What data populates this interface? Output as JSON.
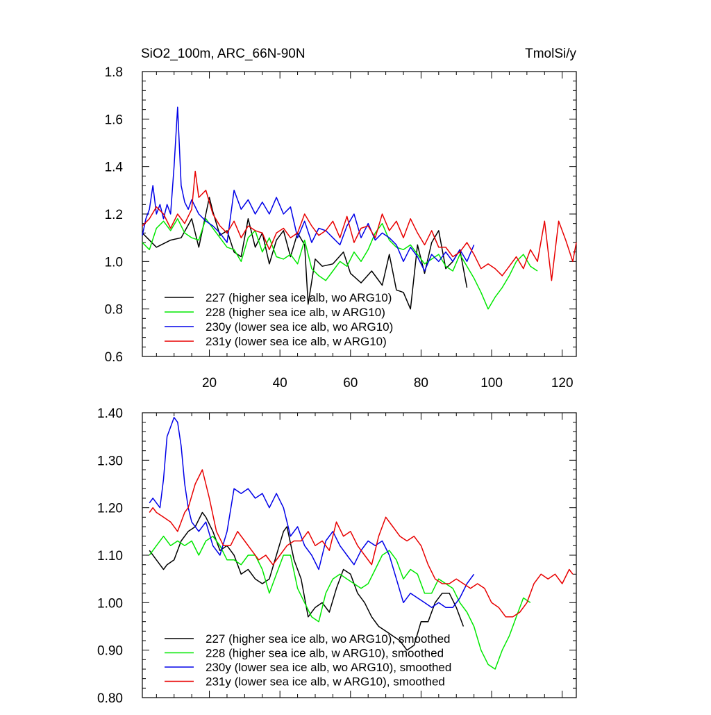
{
  "chart_data": [
    {
      "type": "line",
      "title": "SiO2_100m, ARC_66N-90N",
      "units": "TmolSi/y",
      "xlim": [
        1,
        124
      ],
      "ylim": [
        0.6,
        1.8
      ],
      "grid": false,
      "legend_position": "bottom-left",
      "x_ticks": [
        20,
        40,
        60,
        80,
        100,
        120
      ],
      "x_tick_labels": [
        "20",
        "40",
        "60",
        "80",
        "100",
        "120"
      ],
      "y_ticks": [
        0.6,
        0.8,
        1.0,
        1.2,
        1.4,
        1.6,
        1.8
      ],
      "y_tick_labels": [
        "0.6",
        "0.8",
        "1.0",
        "1.2",
        "1.4",
        "1.6",
        "1.8"
      ],
      "series": [
        {
          "name": "227 (higher sea ice alb, wo ARG10)",
          "color": "#000000",
          "x": [
            1,
            5,
            9,
            12,
            15,
            17,
            19,
            20,
            21,
            23,
            25,
            27,
            29,
            31,
            33,
            35,
            37,
            39,
            41,
            43,
            45,
            47,
            48,
            50,
            52,
            55,
            58,
            60,
            63,
            66,
            69,
            71,
            73,
            75,
            77,
            79,
            81,
            83,
            85,
            87,
            89,
            91,
            93
          ],
          "y": [
            1.12,
            1.06,
            1.09,
            1.1,
            1.18,
            1.06,
            1.2,
            1.27,
            1.21,
            1.11,
            1.13,
            1.04,
            1.02,
            1.18,
            1.06,
            1.12,
            0.99,
            1.09,
            1.13,
            1.02,
            1.12,
            1.07,
            0.82,
            1.01,
            0.98,
            0.99,
            1.04,
            0.95,
            0.91,
            0.96,
            0.9,
            1.03,
            0.88,
            0.87,
            0.8,
            1.07,
            0.95,
            1.08,
            1.13,
            0.97,
            1.0,
            1.05,
            0.89
          ]
        },
        {
          "name": "228 (higher sea ice alb, w ARG10)",
          "color": "#00e800",
          "x": [
            1,
            3,
            5,
            7,
            9,
            11,
            13,
            15,
            17,
            19,
            21,
            23,
            25,
            27,
            29,
            31,
            33,
            35,
            37,
            39,
            41,
            43,
            45,
            47,
            49,
            51,
            53,
            55,
            57,
            59,
            61,
            63,
            65,
            67,
            69,
            71,
            73,
            75,
            77,
            79,
            81,
            83,
            85,
            87,
            89,
            91,
            93,
            95,
            97,
            99,
            101,
            103,
            105,
            107,
            109,
            111,
            113
          ],
          "y": [
            1.08,
            1.05,
            1.14,
            1.17,
            1.13,
            1.18,
            1.12,
            1.1,
            1.09,
            1.18,
            1.14,
            1.1,
            1.06,
            1.05,
            1.0,
            1.1,
            1.13,
            1.04,
            1.1,
            1.02,
            1.01,
            1.03,
            0.99,
            1.09,
            0.97,
            0.94,
            0.92,
            0.96,
            1.0,
            0.98,
            1.04,
            1.0,
            1.05,
            1.12,
            1.16,
            1.09,
            1.06,
            1.05,
            1.07,
            1.03,
            0.99,
            1.01,
            1.03,
            0.98,
            0.96,
            1.03,
            0.98,
            0.93,
            0.87,
            0.8,
            0.85,
            0.89,
            0.94,
            1.0,
            1.03,
            0.98,
            0.96
          ]
        },
        {
          "name": "230y (lower sea ice alb, wo ARG10)",
          "color": "#0000e8",
          "x": [
            1,
            2,
            3,
            4,
            5,
            6,
            7,
            8,
            9,
            10,
            11,
            12,
            13,
            14,
            15,
            17,
            19,
            21,
            23,
            25,
            27,
            29,
            31,
            33,
            35,
            37,
            39,
            41,
            43,
            45,
            47,
            49,
            51,
            53,
            55,
            57,
            59,
            61,
            63,
            65,
            67,
            69,
            71,
            73,
            75,
            77,
            79,
            81,
            83,
            85,
            87,
            89,
            91,
            93,
            95
          ],
          "y": [
            1.11,
            1.18,
            1.22,
            1.32,
            1.2,
            1.24,
            1.18,
            1.24,
            1.2,
            1.4,
            1.65,
            1.32,
            1.25,
            1.22,
            1.26,
            1.2,
            1.17,
            1.15,
            1.12,
            1.08,
            1.3,
            1.22,
            1.26,
            1.2,
            1.25,
            1.2,
            1.27,
            1.2,
            1.23,
            1.1,
            1.17,
            1.08,
            1.14,
            1.13,
            1.1,
            1.07,
            1.15,
            1.2,
            1.1,
            1.16,
            1.09,
            1.12,
            1.1,
            1.07,
            1.0,
            1.06,
            1.02,
            0.96,
            1.03,
            1.0,
            1.04,
            1.0,
            1.05,
            1.0,
            1.07
          ]
        },
        {
          "name": "231y (lower sea ice alb, w ARG10)",
          "color": "#e80000",
          "x": [
            1,
            3,
            5,
            7,
            9,
            11,
            13,
            15,
            16,
            17,
            19,
            21,
            23,
            25,
            27,
            29,
            31,
            33,
            35,
            37,
            39,
            41,
            43,
            45,
            47,
            49,
            51,
            53,
            55,
            57,
            59,
            61,
            63,
            65,
            67,
            69,
            71,
            73,
            75,
            77,
            79,
            81,
            83,
            85,
            87,
            89,
            91,
            93,
            95,
            97,
            99,
            101,
            103,
            105,
            107,
            109,
            111,
            113,
            115,
            117,
            119,
            121,
            123,
            124
          ],
          "y": [
            1.15,
            1.18,
            1.23,
            1.2,
            1.14,
            1.2,
            1.16,
            1.22,
            1.38,
            1.27,
            1.3,
            1.2,
            1.15,
            1.12,
            1.17,
            1.1,
            1.15,
            1.13,
            1.12,
            1.05,
            1.12,
            1.14,
            1.1,
            1.12,
            1.2,
            1.15,
            1.11,
            1.13,
            1.17,
            1.1,
            1.19,
            1.08,
            1.14,
            1.15,
            1.1,
            1.2,
            1.13,
            1.17,
            1.1,
            1.18,
            1.12,
            1.07,
            1.13,
            1.06,
            1.06,
            1.02,
            1.04,
            1.08,
            1.03,
            0.97,
            0.99,
            0.97,
            0.94,
            0.98,
            1.02,
            0.97,
            1.05,
            1.0,
            1.17,
            0.92,
            1.17,
            1.09,
            1.0,
            1.08
          ]
        }
      ],
      "legend": [
        "227 (higher sea ice alb, wo ARG10)",
        "228 (higher sea ice alb, w ARG10)",
        "230y (lower sea ice alb, wo ARG10)",
        "231y (lower sea ice alb, w ARG10)"
      ]
    },
    {
      "type": "line",
      "title": "",
      "xlim": [
        1,
        124
      ],
      "ylim": [
        0.8,
        1.4
      ],
      "grid": false,
      "legend_position": "bottom-left",
      "x_ticks": [
        20,
        40,
        60,
        80,
        100,
        120
      ],
      "x_tick_labels": [],
      "y_ticks": [
        0.8,
        0.9,
        1.0,
        1.1,
        1.2,
        1.3,
        1.4
      ],
      "y_tick_labels": [
        "0.80",
        "0.90",
        "1.00",
        "1.10",
        "1.20",
        "1.30",
        "1.40"
      ],
      "series": [
        {
          "name": "227 (higher sea ice alb, wo ARG10), smoothed",
          "color": "#000000",
          "x": [
            3,
            5,
            7,
            8,
            10,
            12,
            14,
            16,
            18,
            19,
            21,
            23,
            25,
            27,
            29,
            31,
            33,
            35,
            37,
            39,
            41,
            42,
            44,
            46,
            48,
            50,
            52,
            54,
            56,
            58,
            60,
            62,
            64,
            66,
            68,
            70,
            72,
            74,
            76,
            78,
            80,
            82,
            84,
            86,
            88,
            90,
            92
          ],
          "y": [
            1.11,
            1.09,
            1.07,
            1.08,
            1.09,
            1.13,
            1.15,
            1.16,
            1.19,
            1.18,
            1.15,
            1.11,
            1.12,
            1.1,
            1.06,
            1.07,
            1.05,
            1.04,
            1.05,
            1.1,
            1.15,
            1.16,
            1.09,
            1.05,
            0.97,
            0.99,
            1.0,
            0.98,
            1.03,
            1.07,
            1.06,
            1.02,
            1.0,
            0.97,
            0.95,
            0.94,
            0.93,
            0.92,
            0.9,
            0.91,
            0.96,
            0.96,
            1.0,
            1.02,
            1.02,
            0.99,
            0.95
          ]
        },
        {
          "name": "228 (higher sea ice alb, w ARG10), smoothed",
          "color": "#00e800",
          "x": [
            3,
            5,
            7,
            9,
            11,
            13,
            15,
            17,
            19,
            21,
            23,
            25,
            27,
            29,
            31,
            33,
            35,
            37,
            39,
            41,
            43,
            45,
            47,
            49,
            51,
            53,
            55,
            57,
            59,
            61,
            63,
            65,
            67,
            69,
            71,
            73,
            75,
            77,
            79,
            81,
            83,
            85,
            87,
            89,
            91,
            93,
            95,
            97,
            99,
            101,
            103,
            105,
            107,
            109,
            111
          ],
          "y": [
            1.1,
            1.12,
            1.14,
            1.12,
            1.13,
            1.12,
            1.13,
            1.1,
            1.13,
            1.14,
            1.12,
            1.09,
            1.09,
            1.08,
            1.1,
            1.1,
            1.07,
            1.02,
            1.06,
            1.1,
            1.1,
            1.03,
            1.0,
            0.97,
            0.96,
            1.02,
            1.05,
            1.06,
            1.05,
            1.04,
            1.03,
            1.04,
            1.07,
            1.1,
            1.11,
            1.09,
            1.05,
            1.07,
            1.06,
            1.02,
            1.02,
            1.05,
            1.04,
            1.03,
            1.0,
            0.98,
            0.95,
            0.9,
            0.87,
            0.86,
            0.9,
            0.93,
            0.97,
            1.01,
            1.0
          ]
        },
        {
          "name": "230y (lower sea ice alb, wo ARG10), smoothed",
          "color": "#0000e8",
          "x": [
            3,
            4,
            5,
            6,
            7,
            8,
            9,
            10,
            11,
            12,
            13,
            14,
            15,
            17,
            19,
            21,
            23,
            25,
            27,
            29,
            31,
            33,
            35,
            37,
            39,
            41,
            43,
            45,
            47,
            49,
            51,
            53,
            55,
            57,
            59,
            61,
            63,
            65,
            67,
            69,
            71,
            73,
            75,
            77,
            79,
            81,
            83,
            85,
            87,
            89,
            91,
            93,
            95
          ],
          "y": [
            1.21,
            1.22,
            1.21,
            1.2,
            1.26,
            1.35,
            1.37,
            1.39,
            1.38,
            1.33,
            1.25,
            1.2,
            1.17,
            1.15,
            1.17,
            1.12,
            1.1,
            1.15,
            1.24,
            1.23,
            1.24,
            1.22,
            1.23,
            1.2,
            1.23,
            1.2,
            1.14,
            1.16,
            1.12,
            1.1,
            1.07,
            1.13,
            1.15,
            1.12,
            1.1,
            1.08,
            1.11,
            1.13,
            1.12,
            1.13,
            1.1,
            1.05,
            1.0,
            1.02,
            1.01,
            1.0,
            0.99,
            1.0,
            0.99,
            0.99,
            1.01,
            1.04,
            1.06
          ]
        },
        {
          "name": "231y (lower sea ice alb, w ARG10), smoothed",
          "color": "#e80000",
          "x": [
            3,
            4,
            5,
            7,
            9,
            11,
            13,
            14,
            16,
            18,
            20,
            22,
            24,
            26,
            28,
            30,
            32,
            34,
            36,
            38,
            40,
            42,
            44,
            46,
            48,
            50,
            52,
            54,
            56,
            58,
            60,
            62,
            64,
            66,
            68,
            70,
            72,
            74,
            76,
            78,
            80,
            82,
            84,
            86,
            88,
            90,
            92,
            94,
            96,
            98,
            100,
            102,
            104,
            106,
            108,
            110,
            112,
            114,
            116,
            118,
            120,
            122,
            123
          ],
          "y": [
            1.19,
            1.2,
            1.19,
            1.18,
            1.17,
            1.15,
            1.19,
            1.2,
            1.25,
            1.28,
            1.22,
            1.15,
            1.12,
            1.12,
            1.15,
            1.13,
            1.11,
            1.09,
            1.1,
            1.08,
            1.1,
            1.12,
            1.13,
            1.13,
            1.15,
            1.12,
            1.13,
            1.11,
            1.17,
            1.14,
            1.15,
            1.12,
            1.1,
            1.08,
            1.14,
            1.18,
            1.16,
            1.14,
            1.13,
            1.14,
            1.12,
            1.08,
            1.05,
            1.04,
            1.04,
            1.05,
            1.04,
            1.03,
            1.04,
            1.03,
            1.0,
            0.99,
            0.97,
            0.97,
            0.98,
            1.0,
            1.04,
            1.06,
            1.05,
            1.06,
            1.04,
            1.07,
            1.06
          ]
        }
      ],
      "legend": [
        "227 (higher sea ice alb, wo ARG10), smoothed",
        "228 (higher sea ice alb, w ARG10), smoothed",
        "230y (lower sea ice alb, wo ARG10), smoothed",
        "231y (lower sea ice alb, w ARG10), smoothed"
      ]
    }
  ]
}
